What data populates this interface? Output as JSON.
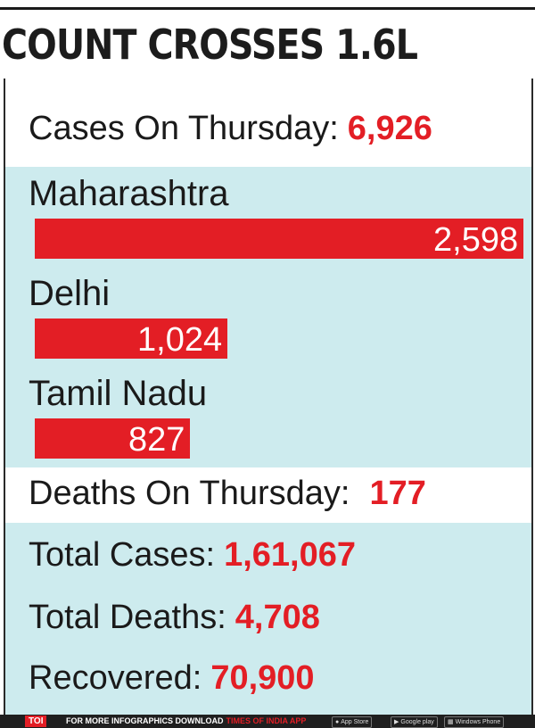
{
  "headline": "COUNT CROSSES 1.6L",
  "cases_thursday": {
    "label": "Cases On Thursday:",
    "value": "6,926"
  },
  "deaths_thursday": {
    "label": "Deaths On Thursday:",
    "value": "177"
  },
  "totals": [
    {
      "label": "Total Cases:",
      "value": "1,61,067"
    },
    {
      "label": "Total Deaths:",
      "value": "4,708"
    },
    {
      "label": "Recovered:",
      "value": "70,900"
    }
  ],
  "chart_data": {
    "type": "bar",
    "orientation": "horizontal",
    "categories": [
      "Maharashtra",
      "Delhi",
      "Tamil Nadu"
    ],
    "values": [
      2598,
      1024,
      827
    ],
    "value_labels": [
      "2,598",
      "1,024",
      "827"
    ],
    "bar_color": "#e31e25"
  },
  "colors": {
    "accent": "#e31e25",
    "panel": "#cdebee",
    "text": "#1a1a1a"
  },
  "footer": {
    "toi": "TOI",
    "promo": "FOR MORE INFOGRAPHICS DOWNLOAD",
    "app": "TIMES OF INDIA APP",
    "stores": [
      {
        "icon": "apple-icon",
        "label": "App Store"
      },
      {
        "icon": "google-play-icon",
        "label": "Google play"
      },
      {
        "icon": "windows-icon",
        "label": "Windows Phone"
      }
    ]
  }
}
